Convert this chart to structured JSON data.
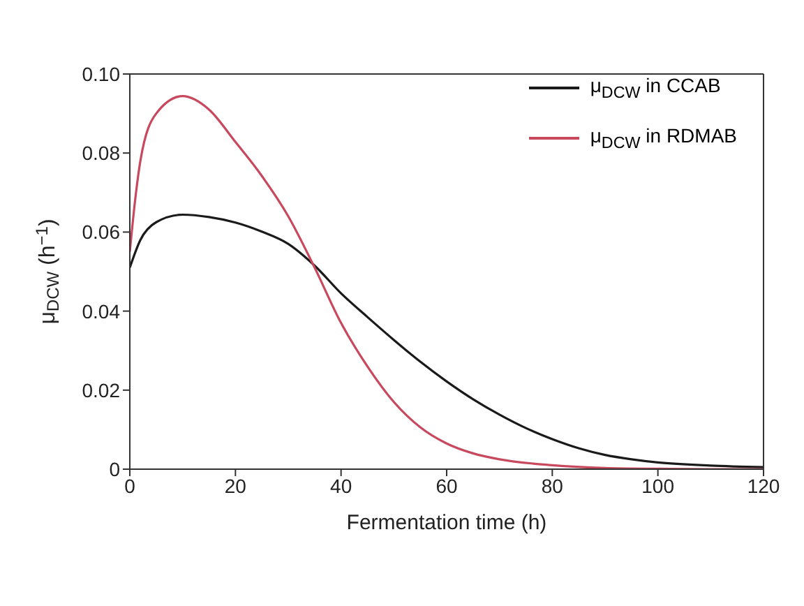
{
  "chart_data": {
    "type": "line",
    "xlabel": "Fermentation time (h)",
    "ylabel": "μ$_{DCW}$ (h$^{−1}$)",
    "xlim": [
      0,
      120
    ],
    "xticks": [
      0,
      20,
      40,
      60,
      80,
      100,
      120
    ],
    "ylim": [
      0,
      0.1
    ],
    "yticks": [
      0,
      {
        "value": 0.02,
        "label": "0.02"
      },
      {
        "value": 0.04,
        "label": "0.04"
      },
      {
        "value": 0.06,
        "label": "0.06"
      },
      {
        "value": 0.08,
        "label": "0.08"
      },
      {
        "value": 0.1,
        "label": "0.10"
      }
    ],
    "grid": false,
    "legend": "top right",
    "marker": "none",
    "line_style": "solid",
    "series": [
      {
        "name": "μ$_{DCW}$ in CCAB",
        "color": "#1a1a1a",
        "x": [
          0,
          2,
          5,
          10,
          15,
          20,
          25,
          30,
          35,
          40,
          45,
          50,
          55,
          60,
          65,
          70,
          75,
          80,
          85,
          90,
          95,
          100,
          110,
          120
        ],
        "values": [
          0.051,
          0.058,
          0.0625,
          0.0644,
          0.0638,
          0.0624,
          0.0601,
          0.057,
          0.0515,
          0.0445,
          0.0385,
          0.0327,
          0.0272,
          0.0222,
          0.0177,
          0.0138,
          0.0104,
          0.0076,
          0.0053,
          0.0036,
          0.0025,
          0.0017,
          0.0009,
          0.0005
        ]
      },
      {
        "name": "μ$_{DCW}$ in RDMAB",
        "color": "#c8485e",
        "x": [
          0,
          1,
          2,
          5,
          10,
          15,
          20,
          25,
          30,
          35,
          40,
          45,
          50,
          55,
          60,
          65,
          70,
          80,
          90,
          100,
          110,
          120
        ],
        "values": [
          0.055,
          0.068,
          0.078,
          0.09,
          0.0944,
          0.091,
          0.0828,
          0.0742,
          0.064,
          0.051,
          0.037,
          0.026,
          0.017,
          0.0106,
          0.0065,
          0.004,
          0.0025,
          0.001,
          0.0003,
          0.0001,
          0,
          0
        ]
      }
    ]
  }
}
